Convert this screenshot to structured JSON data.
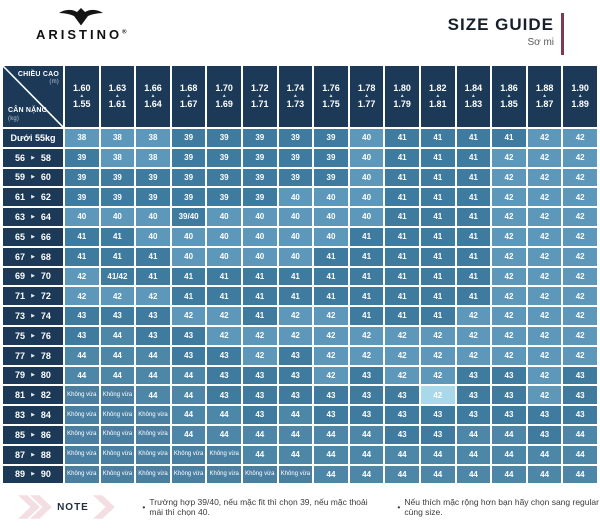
{
  "brand": {
    "name": "ARISTINO",
    "registered_mark": "®"
  },
  "header": {
    "title": "SIZE GUIDE",
    "subtitle": "Sơ mi"
  },
  "icons": {
    "up_triangle": "▲",
    "right_triangle": "▶",
    "bullet": "•",
    "logo_icon": "eagle-wings-icon",
    "note_chevron": "pink-chevron-icon"
  },
  "chart_data": {
    "type": "table",
    "title": "SIZE GUIDE",
    "subtitle": "Sơ mi",
    "corner": {
      "top_label": "CHIỀU CAO",
      "top_unit": "(m)",
      "bottom_label": "CÂN NẶNG",
      "bottom_unit": "(kg)"
    },
    "height_columns_m": [
      {
        "max": "1.60",
        "min": "1.55"
      },
      {
        "max": "1.63",
        "min": "1.61"
      },
      {
        "max": "1.66",
        "min": "1.64"
      },
      {
        "max": "1.68",
        "min": "1.67"
      },
      {
        "max": "1.70",
        "min": "1.69"
      },
      {
        "max": "1.72",
        "min": "1.71"
      },
      {
        "max": "1.74",
        "min": "1.73"
      },
      {
        "max": "1.76",
        "min": "1.75"
      },
      {
        "max": "1.78",
        "min": "1.77"
      },
      {
        "max": "1.80",
        "min": "1.79"
      },
      {
        "max": "1.82",
        "min": "1.81"
      },
      {
        "max": "1.84",
        "min": "1.83"
      },
      {
        "max": "1.86",
        "min": "1.85"
      },
      {
        "max": "1.88",
        "min": "1.87"
      },
      {
        "max": "1.90",
        "min": "1.89"
      }
    ],
    "no_fit_label": "Không vừa",
    "weight_rows_kg": [
      {
        "label": "Dưới 55kg",
        "sizes": [
          "38",
          "38",
          "38",
          "39",
          "39",
          "39",
          "39",
          "39",
          "40",
          "41",
          "41",
          "41",
          "41",
          "42",
          "42"
        ]
      },
      {
        "from": "56",
        "to": "58",
        "sizes": [
          "39",
          "38",
          "38",
          "39",
          "39",
          "39",
          "39",
          "39",
          "40",
          "41",
          "41",
          "41",
          "42",
          "42",
          "42"
        ]
      },
      {
        "from": "59",
        "to": "60",
        "sizes": [
          "39",
          "39",
          "39",
          "39",
          "39",
          "39",
          "39",
          "39",
          "40",
          "41",
          "41",
          "41",
          "42",
          "42",
          "42"
        ]
      },
      {
        "from": "61",
        "to": "62",
        "sizes": [
          "39",
          "39",
          "39",
          "39",
          "39",
          "39",
          "40",
          "40",
          "40",
          "41",
          "41",
          "41",
          "42",
          "42",
          "42"
        ]
      },
      {
        "from": "63",
        "to": "64",
        "sizes": [
          "40",
          "40",
          "40",
          "39/40",
          "40",
          "40",
          "40",
          "40",
          "40",
          "41",
          "41",
          "41",
          "42",
          "42",
          "42"
        ]
      },
      {
        "from": "65",
        "to": "66",
        "sizes": [
          "41",
          "41",
          "40",
          "40",
          "40",
          "40",
          "40",
          "40",
          "41",
          "41",
          "41",
          "41",
          "42",
          "42",
          "42"
        ]
      },
      {
        "from": "67",
        "to": "68",
        "sizes": [
          "41",
          "41",
          "41",
          "40",
          "40",
          "40",
          "40",
          "41",
          "41",
          "41",
          "41",
          "41",
          "42",
          "42",
          "42"
        ]
      },
      {
        "from": "69",
        "to": "70",
        "sizes": [
          "42",
          "41/42",
          "41",
          "41",
          "41",
          "41",
          "41",
          "41",
          "41",
          "41",
          "41",
          "41",
          "42",
          "42",
          "42"
        ]
      },
      {
        "from": "71",
        "to": "72",
        "sizes": [
          "42",
          "42",
          "42",
          "41",
          "41",
          "41",
          "41",
          "41",
          "41",
          "41",
          "41",
          "41",
          "42",
          "42",
          "42"
        ]
      },
      {
        "from": "73",
        "to": "74",
        "sizes": [
          "43",
          "43",
          "43",
          "42",
          "42",
          "41",
          "42",
          "42",
          "41",
          "41",
          "41",
          "42",
          "42",
          "42",
          "42"
        ]
      },
      {
        "from": "75",
        "to": "76",
        "sizes": [
          "43",
          "44",
          "43",
          "43",
          "42",
          "42",
          "42",
          "42",
          "42",
          "42",
          "42",
          "42",
          "42",
          "42",
          "42"
        ]
      },
      {
        "from": "77",
        "to": "78",
        "sizes": [
          "44",
          "44",
          "44",
          "43",
          "43",
          "42",
          "43",
          "42",
          "42",
          "42",
          "42",
          "42",
          "42",
          "42",
          "42"
        ]
      },
      {
        "from": "79",
        "to": "80",
        "sizes": [
          "44",
          "44",
          "44",
          "44",
          "43",
          "43",
          "43",
          "42",
          "43",
          "42",
          "42",
          "43",
          "43",
          "42",
          "43"
        ]
      },
      {
        "from": "81",
        "to": "82",
        "sizes": [
          "Không vừa",
          "Không vừa",
          "44",
          "44",
          "43",
          "43",
          "43",
          "43",
          "43",
          "43",
          "42",
          "43",
          "43",
          "42",
          "43"
        ]
      },
      {
        "from": "83",
        "to": "84",
        "sizes": [
          "Không vừa",
          "Không vừa",
          "Không vừa",
          "44",
          "44",
          "43",
          "44",
          "43",
          "43",
          "43",
          "43",
          "43",
          "43",
          "43",
          "43"
        ]
      },
      {
        "from": "85",
        "to": "86",
        "sizes": [
          "Không vừa",
          "Không vừa",
          "Không vừa",
          "44",
          "44",
          "44",
          "44",
          "44",
          "44",
          "43",
          "43",
          "44",
          "44",
          "43",
          "44"
        ]
      },
      {
        "from": "87",
        "to": "88",
        "sizes": [
          "Không vừa",
          "Không vừa",
          "Không vừa",
          "Không vừa",
          "Không vừa",
          "44",
          "44",
          "44",
          "44",
          "44",
          "44",
          "44",
          "44",
          "44",
          "44"
        ]
      },
      {
        "from": "89",
        "to": "90",
        "sizes": [
          "Không vừa",
          "Không vừa",
          "Không vừa",
          "Không vừa",
          "Không vừa",
          "Không vừa",
          "Không vừa",
          "44",
          "44",
          "44",
          "44",
          "44",
          "44",
          "44",
          "44"
        ]
      }
    ]
  },
  "note": {
    "label": "NOTE",
    "items": [
      "Trường hợp 39/40, nếu mặc fit thì chọn 39, nếu mặc thoải mái thì chọn 40.",
      "Nếu thích mặc rộng hơn bạn hãy chọn sang regular cùng size."
    ]
  },
  "colors": {
    "header_navy": "#1c3a57",
    "cell_light": "#5d98ba",
    "cell_dark": "#3f7b9f",
    "cell_44": "#4d87a7",
    "cell_no_fit": "#497fa1",
    "cell_highlight": "#a8d9ea",
    "accent_maroon": "#7d3b50",
    "note_pink": "#f2dee3",
    "shade_map": {
      "38": "light",
      "39": "dark",
      "40": "light",
      "41": "dark",
      "42": "light",
      "43": "dark",
      "44": "mid",
      "39/40": "dark",
      "41/42": "dark",
      "Không vừa": "nofit"
    },
    "highlight_cells": [
      {
        "row": 13,
        "col": 10
      }
    ]
  }
}
